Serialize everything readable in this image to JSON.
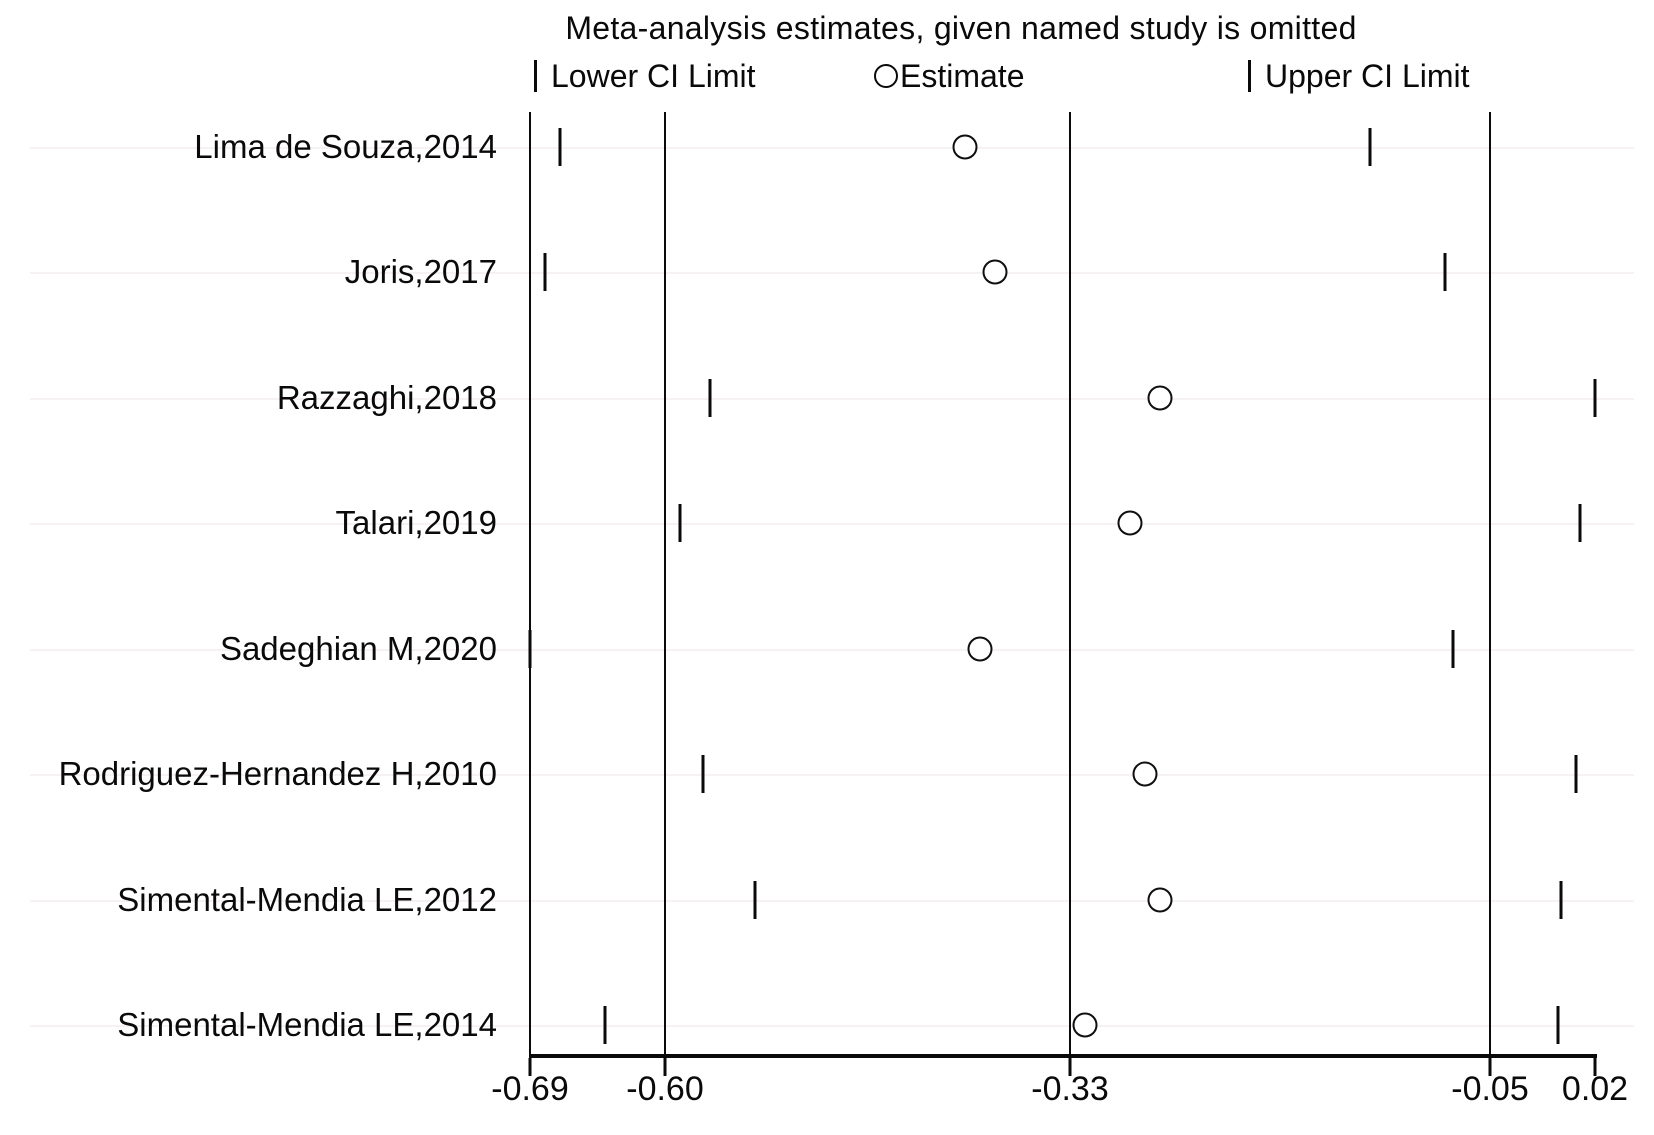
{
  "figure": {
    "title": "Meta-analysis estimates, given named study is omitted",
    "background_color": "#ffffff",
    "foreground_color": "#0a0a0a"
  },
  "chart_data": {
    "type": "scatter",
    "subtype": "leave-one-out-sensitivity-forest",
    "title": "Meta-analysis estimates, given named study is omitted",
    "xlabel": "",
    "ylabel": "",
    "xlim": [
      -0.69,
      0.02
    ],
    "grid": "vertical-reference-lines",
    "gridline_values": [
      -0.69,
      -0.6,
      -0.33,
      -0.05
    ],
    "x_ticks": [
      -0.69,
      -0.6,
      -0.33,
      -0.05,
      0.02
    ],
    "x_tick_labels": [
      "-0.69",
      "-0.60",
      "-0.33",
      "-0.05",
      "0.02"
    ],
    "legend_position": "top",
    "legend": {
      "lower": "Lower CI Limit",
      "estimate": "Estimate",
      "upper": "Upper CI Limit"
    },
    "marker_styles": {
      "lower": "vertical-tick",
      "estimate": "open-circle",
      "upper": "vertical-tick"
    },
    "studies": [
      {
        "label": "Lima de Souza,2014",
        "lower": -0.67,
        "estimate": -0.4,
        "upper": -0.13
      },
      {
        "label": "Joris,2017",
        "lower": -0.68,
        "estimate": -0.38,
        "upper": -0.08
      },
      {
        "label": "Razzaghi,2018",
        "lower": -0.57,
        "estimate": -0.27,
        "upper": 0.02
      },
      {
        "label": "Talari,2019",
        "lower": -0.59,
        "estimate": -0.29,
        "upper": 0.01
      },
      {
        "label": "Sadeghian M,2020",
        "lower": -0.69,
        "estimate": -0.39,
        "upper": -0.075
      },
      {
        "label": "Rodriguez-Hernandez H,2010",
        "lower": -0.575,
        "estimate": -0.28,
        "upper": 0.007
      },
      {
        "label": "Simental-Mendia LE,2012",
        "lower": -0.54,
        "estimate": -0.27,
        "upper": -0.003
      },
      {
        "label": "Simental-Mendia LE,2014",
        "lower": -0.64,
        "estimate": -0.32,
        "upper": -0.005
      }
    ]
  }
}
